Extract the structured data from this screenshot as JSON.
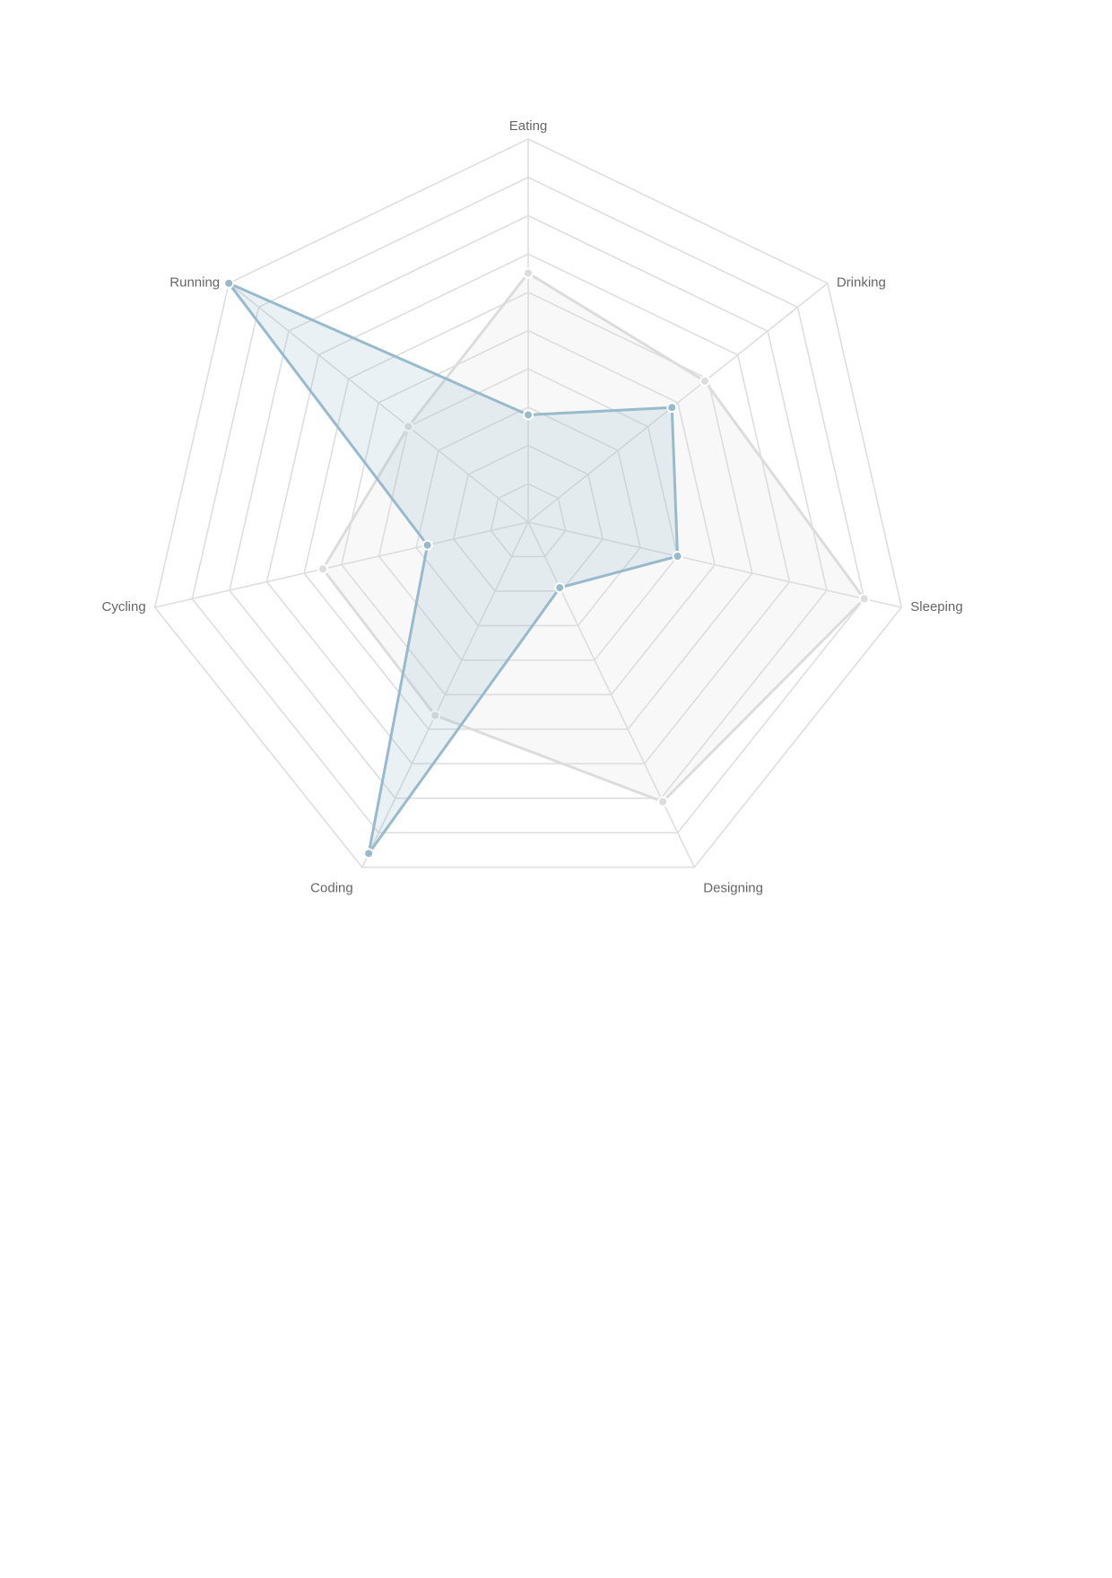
{
  "chart_data": {
    "type": "radar",
    "categories": [
      "Eating",
      "Drinking",
      "Sleeping",
      "Designing",
      "Coding",
      "Cycling",
      "Running"
    ],
    "scale": {
      "min": 0,
      "max": 100,
      "step": 10
    },
    "grid": true,
    "series": [
      {
        "values": [
          65,
          59,
          90,
          81,
          56,
          55,
          40
        ],
        "stroke": "#dcdcdc",
        "fill": "#dcdcdc",
        "fill_opacity": 0.2
      },
      {
        "values": [
          28,
          48,
          40,
          19,
          96,
          27,
          100
        ],
        "stroke": "#97bbcd",
        "fill": "#97bbcd",
        "fill_opacity": 0.2
      }
    ]
  }
}
